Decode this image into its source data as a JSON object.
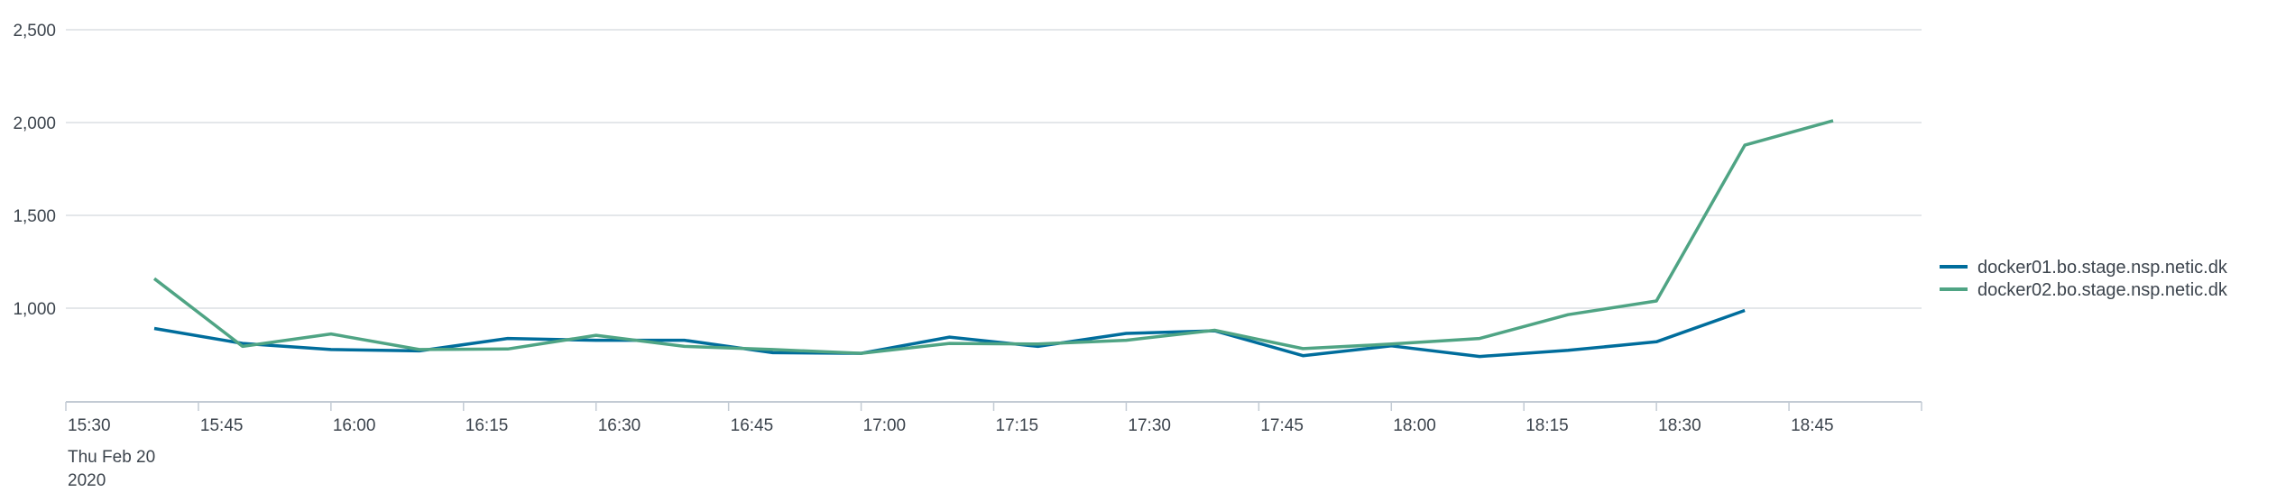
{
  "chart_data": {
    "type": "line",
    "title": "",
    "xlabel": "",
    "ylabel": "",
    "ylim": [
      500,
      2500
    ],
    "xlim": [
      "15:30",
      "19:00"
    ],
    "grid": "horizontal",
    "legend_position": "right",
    "y_ticks": [
      "2,500",
      "2,000",
      "1,500",
      "1,000"
    ],
    "y_tick_values": [
      2500,
      2000,
      1500,
      1000
    ],
    "x_ticks": [
      "15:30",
      "15:45",
      "16:00",
      "16:15",
      "16:30",
      "16:45",
      "17:00",
      "17:15",
      "17:30",
      "17:45",
      "18:00",
      "18:15",
      "18:30",
      "18:45"
    ],
    "x_date_label": [
      "Thu Feb 20",
      "2020"
    ],
    "x": [
      "15:40",
      "15:50",
      "16:00",
      "16:10",
      "16:20",
      "16:30",
      "16:40",
      "16:50",
      "17:00",
      "17:10",
      "17:20",
      "17:30",
      "17:40",
      "17:50",
      "18:00",
      "18:10",
      "18:20",
      "18:30",
      "18:40",
      "18:50"
    ],
    "series": [
      {
        "name": "docker01.bo.stage.nsp.netic.dk",
        "color": "#006d9c",
        "values": [
          891,
          810,
          777,
          770,
          837,
          827,
          827,
          760,
          757,
          844,
          794,
          864,
          878,
          744,
          797,
          740,
          773,
          819,
          988,
          null
        ]
      },
      {
        "name": "docker02.bo.stage.nsp.netic.dk",
        "color": "#4fa484",
        "values": [
          1159,
          794,
          861,
          777,
          780,
          854,
          794,
          777,
          757,
          810,
          807,
          827,
          881,
          782,
          807,
          837,
          965,
          1039,
          1878,
          2010
        ]
      }
    ]
  }
}
